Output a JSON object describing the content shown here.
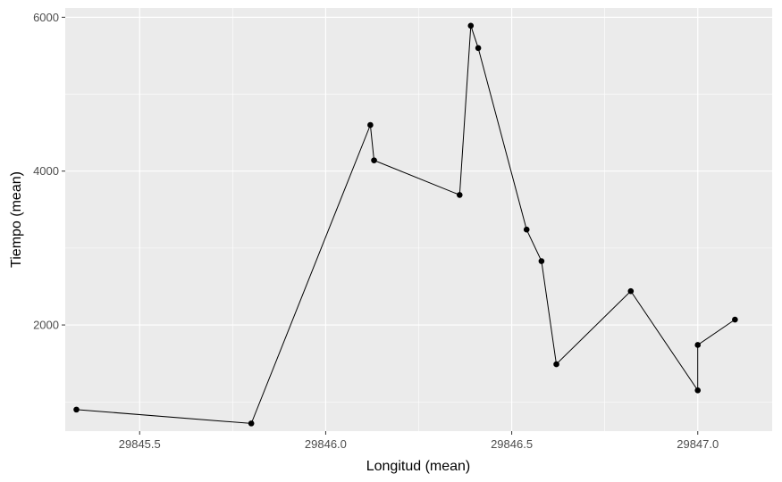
{
  "chart_data": {
    "type": "line",
    "title": "",
    "xlabel": "Longitud (mean)",
    "ylabel": "Tiempo (mean)",
    "xlim": [
      29845.3,
      29847.2
    ],
    "ylim": [
      620,
      6120
    ],
    "x_ticks": [
      29845.5,
      29846.0,
      29846.5,
      29847.0
    ],
    "x_tick_labels": [
      "29845.5",
      "29846.0",
      "29846.5",
      "29847.0"
    ],
    "x_minor_ticks": [
      29845.75,
      29846.25,
      29846.75
    ],
    "y_ticks": [
      2000,
      4000,
      6000
    ],
    "y_tick_labels": [
      "2000",
      "4000",
      "6000"
    ],
    "y_minor_ticks": [
      1000,
      3000,
      5000
    ],
    "grid": true,
    "colors": {
      "panel": "#ebebeb",
      "grid": "#ffffff",
      "line": "#000000",
      "point": "#000000",
      "tick_label": "#4d4d4d",
      "axis_title": "#000000"
    },
    "series": [
      {
        "x": [
          29845.33,
          29845.8,
          29846.12,
          29846.13,
          29846.36,
          29846.39,
          29846.41,
          29846.54,
          29846.58,
          29846.62,
          29846.82,
          29847.0,
          29847.0,
          29847.1
        ],
        "values": [
          900,
          720,
          4600,
          4140,
          3690,
          5890,
          5600,
          3240,
          2830,
          1490,
          2440,
          1150,
          1740,
          2070
        ]
      }
    ]
  }
}
